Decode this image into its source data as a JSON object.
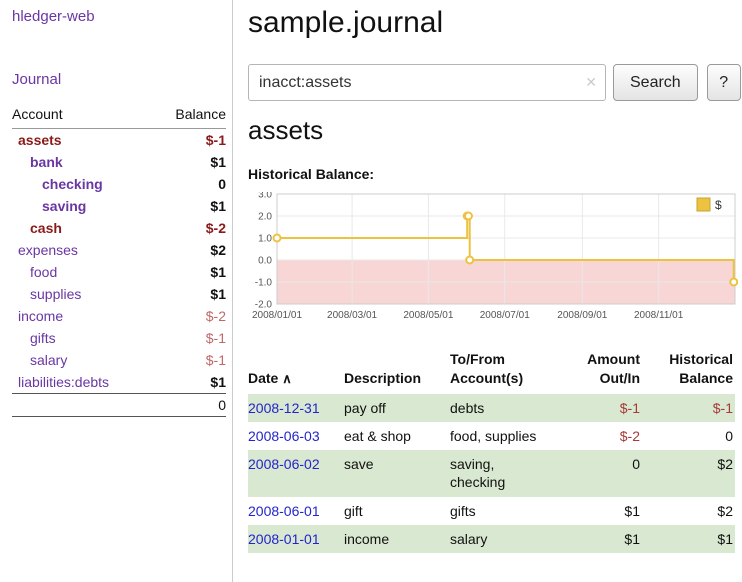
{
  "colors": {
    "purple": "#6a36a3",
    "date-blue": "#2424cc",
    "neg-strong": "#8b1a1a",
    "neg-soft": "#c06868",
    "neg-amount": "#a63a3a",
    "row-green": "#d9e8d0"
  },
  "app": {
    "title": "hledger-web"
  },
  "sidebar": {
    "journal_link": "Journal",
    "headers": {
      "account": "Account",
      "balance": "Balance"
    },
    "accounts": [
      {
        "name": "assets",
        "balance": "$-1"
      },
      {
        "name": "bank",
        "balance": "$1"
      },
      {
        "name": "checking",
        "balance": "0"
      },
      {
        "name": "saving",
        "balance": "$1"
      },
      {
        "name": "cash",
        "balance": "$-2"
      },
      {
        "name": "expenses",
        "balance": "$2"
      },
      {
        "name": "food",
        "balance": "$1"
      },
      {
        "name": "supplies",
        "balance": "$1"
      },
      {
        "name": "income",
        "balance": "$-2"
      },
      {
        "name": "gifts",
        "balance": "$-1"
      },
      {
        "name": "salary",
        "balance": "$-1"
      },
      {
        "name": "liabilities:debts",
        "balance": "$1"
      }
    ],
    "total": "0"
  },
  "main": {
    "title": "sample.journal",
    "search": {
      "value": "inacct:assets",
      "clear_icon": "✕",
      "button_label": "Search",
      "help_label": "?"
    },
    "account_heading": "assets",
    "chart_label": "Historical Balance:"
  },
  "chart_data": {
    "type": "line",
    "title": "Historical Balance",
    "step": true,
    "legend": [
      {
        "label": "$",
        "color": "#edc240"
      }
    ],
    "ylim": [
      -2,
      3
    ],
    "y_ticks": [
      3,
      2,
      1,
      0,
      -1,
      -2
    ],
    "x_max_day": 366,
    "x_ticks": [
      {
        "day": 0,
        "label": "2008/01/01"
      },
      {
        "day": 60,
        "label": "2008/03/01"
      },
      {
        "day": 121,
        "label": "2008/05/01"
      },
      {
        "day": 182,
        "label": "2008/07/01"
      },
      {
        "day": 244,
        "label": "2008/09/01"
      },
      {
        "day": 305,
        "label": "2008/11/01"
      }
    ],
    "negative_region_color": "#f9d6d6",
    "grid_color": "#e8e8e8",
    "border_color": "#cccccc",
    "series": [
      {
        "name": "$",
        "color": "#edc240",
        "points": [
          {
            "date": "2008-01-01",
            "day": 0,
            "y": 1
          },
          {
            "date": "2008-06-01",
            "day": 152,
            "y": 2
          },
          {
            "date": "2008-06-02",
            "day": 153,
            "y": 2
          },
          {
            "date": "2008-06-03",
            "day": 154,
            "y": 0
          },
          {
            "date": "2008-12-31",
            "day": 365,
            "y": -1
          }
        ]
      }
    ]
  },
  "register": {
    "headers": {
      "date": "Date",
      "sort_indicator": "∧",
      "description": "Description",
      "tofrom_line1": "To/From",
      "tofrom_line2": "Account(s)",
      "amount_line1": "Amount",
      "amount_line2": "Out/In",
      "balance_line1": "Historical",
      "balance_line2": "Balance"
    },
    "rows": [
      {
        "date": "2008-12-31",
        "description": "pay off",
        "accounts": "debts",
        "amount": "$-1",
        "balance": "$-1"
      },
      {
        "date": "2008-06-03",
        "description": "eat & shop",
        "accounts": "food, supplies",
        "amount": "$-2",
        "balance": "0"
      },
      {
        "date": "2008-06-02",
        "description": "save",
        "accounts": "saving,\nchecking",
        "amount": "0",
        "balance": "$2"
      },
      {
        "date": "2008-06-01",
        "description": "gift",
        "accounts": "gifts",
        "amount": "$1",
        "balance": "$2"
      },
      {
        "date": "2008-01-01",
        "description": "income",
        "accounts": "salary",
        "amount": "$1",
        "balance": "$1"
      }
    ]
  }
}
